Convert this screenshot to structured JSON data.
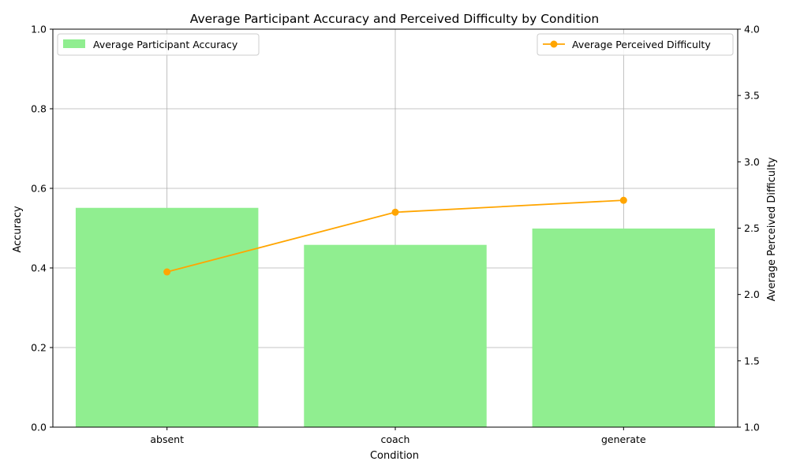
{
  "chart_data": {
    "type": "bar",
    "title": "Average Participant Accuracy and Perceived Difficulty by Condition",
    "xlabel": "Condition",
    "ylabel": "Accuracy",
    "y2label": "Average Perceived Difficulty",
    "categories": [
      "absent",
      "coach",
      "generate"
    ],
    "ylim": [
      0,
      1
    ],
    "y2lim": [
      1,
      4
    ],
    "yticks": [
      "0.0",
      "0.2",
      "0.4",
      "0.6",
      "0.8",
      "1.0"
    ],
    "y2ticks": [
      "1.0",
      "1.5",
      "2.0",
      "2.5",
      "3.0",
      "3.5",
      "4.0"
    ],
    "grid": true,
    "series": [
      {
        "name": "Average Participant Accuracy",
        "type": "bar",
        "axis": "left",
        "color": "#90ee90",
        "values": [
          0.551,
          0.458,
          0.499
        ]
      },
      {
        "name": "Average Perceived Difficulty",
        "type": "line",
        "axis": "right",
        "color": "#ffa500",
        "marker": "circle",
        "values": [
          2.17,
          2.62,
          2.71
        ]
      }
    ],
    "legend": [
      {
        "position": "top-left",
        "series": "Average Participant Accuracy"
      },
      {
        "position": "top-right",
        "series": "Average Perceived Difficulty"
      }
    ]
  }
}
